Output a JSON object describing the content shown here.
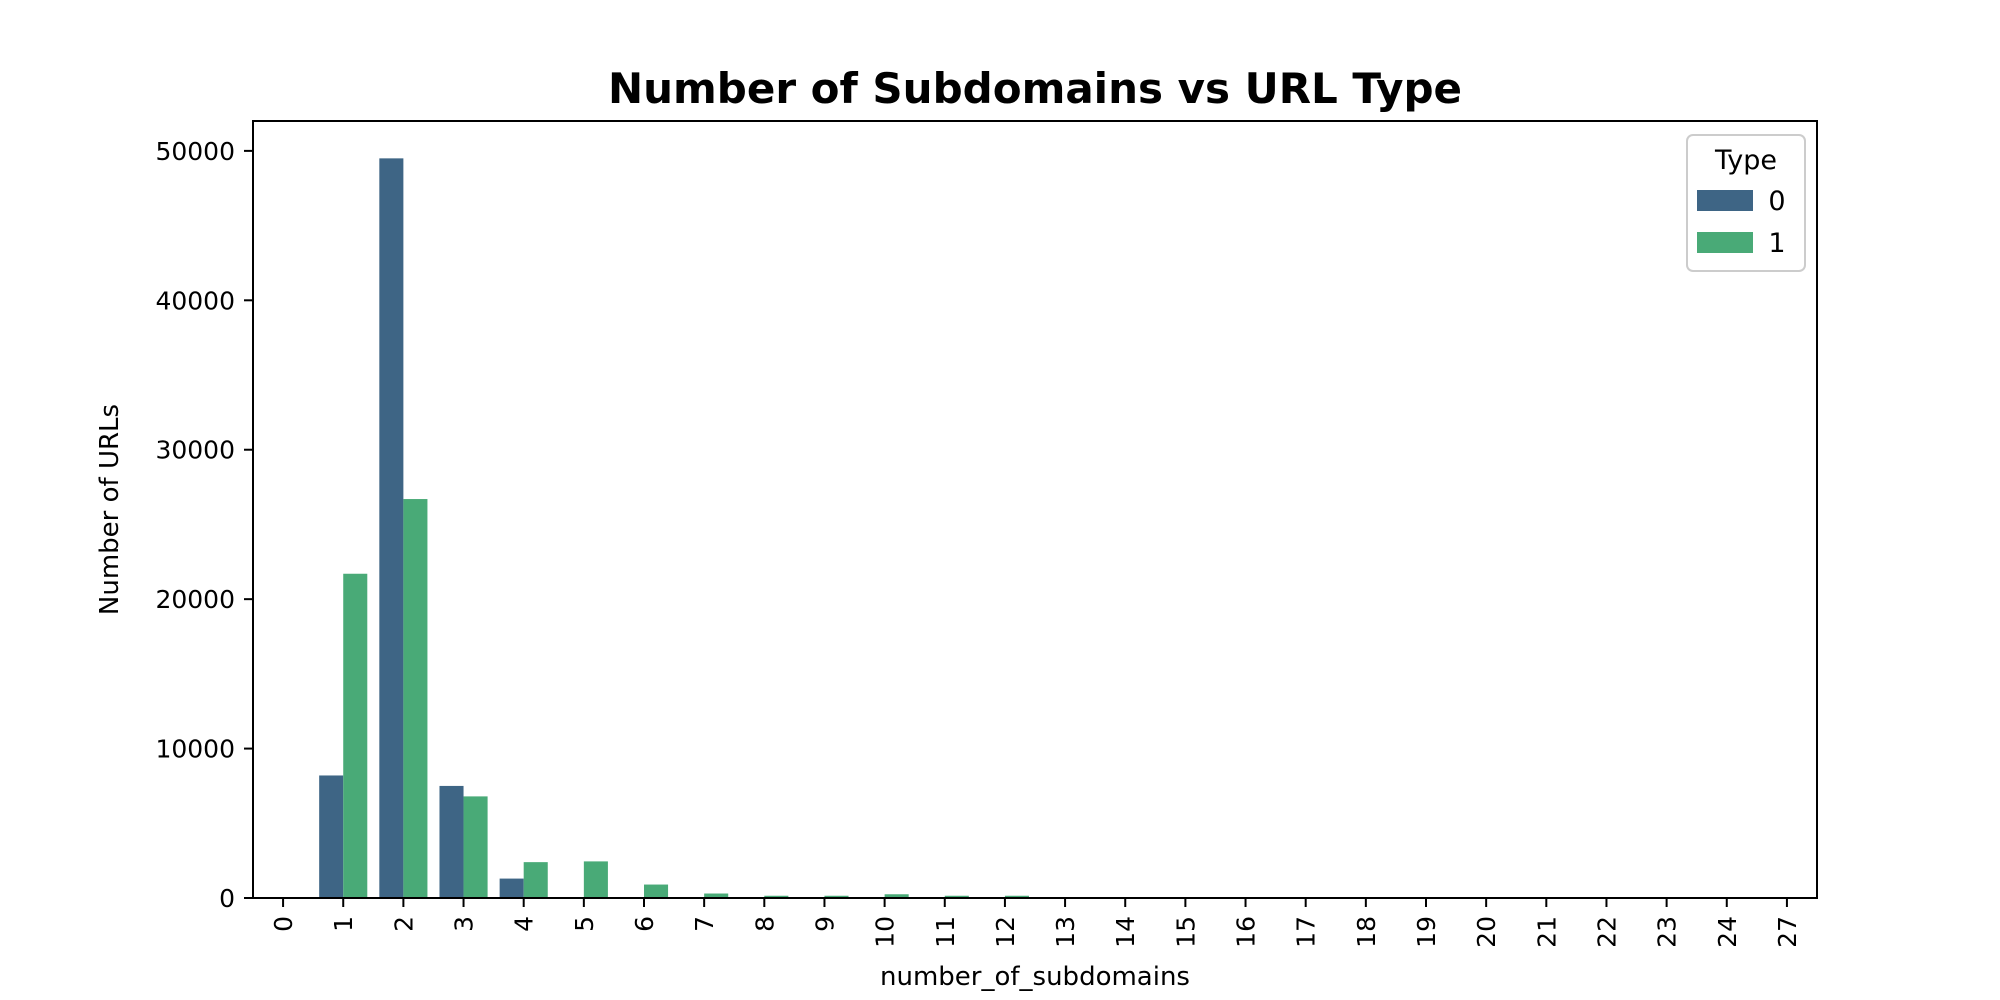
{
  "chart_data": {
    "type": "bar",
    "title": "Number of Subdomains vs URL Type",
    "xlabel": "number_of_subdomains",
    "ylabel": "Number of URLs",
    "categories": [
      "0",
      "1",
      "2",
      "3",
      "4",
      "5",
      "6",
      "7",
      "8",
      "9",
      "10",
      "11",
      "12",
      "13",
      "14",
      "15",
      "16",
      "17",
      "18",
      "19",
      "20",
      "21",
      "22",
      "23",
      "24",
      "27"
    ],
    "yticks": [
      "0",
      "10000",
      "20000",
      "30000",
      "40000",
      "50000"
    ],
    "ylim": [
      0,
      52000
    ],
    "grid": false,
    "legend": {
      "title": "Type",
      "position": "top-right"
    },
    "series": [
      {
        "name": "0",
        "color": "#3e6585",
        "values": [
          0,
          8200,
          49500,
          7500,
          1300,
          0,
          0,
          0,
          0,
          0,
          0,
          0,
          0,
          0,
          0,
          0,
          0,
          0,
          0,
          0,
          0,
          0,
          0,
          0,
          0,
          0
        ]
      },
      {
        "name": "1",
        "color": "#49aa77",
        "values": [
          0,
          21700,
          26700,
          6800,
          2400,
          2450,
          900,
          300,
          150,
          150,
          250,
          150,
          150,
          30,
          15,
          10,
          5,
          5,
          3,
          3,
          2,
          2,
          2,
          2,
          2,
          2
        ]
      }
    ]
  }
}
